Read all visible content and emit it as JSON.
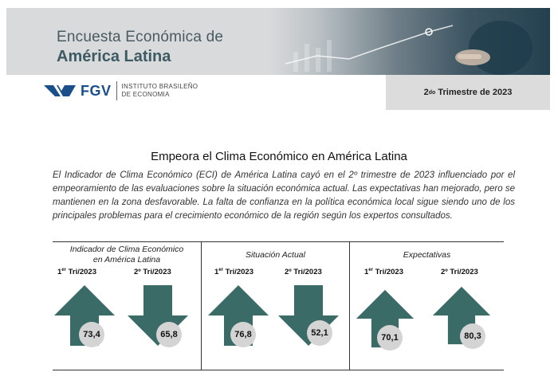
{
  "header": {
    "title_line1": "Encuesta Económica de",
    "title_line2": "América Latina"
  },
  "logo": {
    "brand": "FGV",
    "institute_line1": "INSTITUTO BRASILEÑO",
    "institute_line2": "DE ECONOMIA"
  },
  "quarter": {
    "number": "2",
    "suffix": "do",
    "rest": " Trimestre de 2023"
  },
  "headline": "Empeora el Clima Económico en América Latina",
  "paragraph": "El Indicador de Clima Económico (ECI) de América Latina cayó en el 2º trimestre de 2023 influenciado por el empeoramiento de las evaluaciones sobre la situación económica actual. Las expectativas han mejorado, pero se mantienen en la zona desfavorable. La falta de confianza en la política económica local sigue siendo uno de los principales problemas para el crecimiento económico de la región según los expertos consultados.",
  "colors": {
    "arrow": "#3b6b66",
    "value_circle": "#d4d4d4"
  },
  "indicators": [
    {
      "title_line1": "Indicador de Clima Económico",
      "title_line2": "en América Latina",
      "q1_label_num": "1",
      "q1_label_sup": "er",
      "q1_label_rest": " Tri/2023",
      "q2_label": "2º Tri/2023",
      "q1_value": "73,4",
      "q2_value": "65,8",
      "q1_direction": "up",
      "q2_direction": "down"
    },
    {
      "title_line1": "Situación Actual",
      "q1_label_num": "1",
      "q1_label_sup": "er",
      "q1_label_rest": " Tri/2023",
      "q2_label": "2º Tri/2023",
      "q1_value": "76,8",
      "q2_value": "52,1",
      "q1_direction": "up",
      "q2_direction": "down"
    },
    {
      "title_line1": "Expectativas",
      "q1_label_num": "1",
      "q1_label_sup": "er",
      "q1_label_rest": " Tri/2023",
      "q2_label": "2º Tri/2023",
      "q1_value": "70,1",
      "q2_value": "80,3",
      "q1_direction": "up",
      "q2_direction": "up"
    }
  ]
}
